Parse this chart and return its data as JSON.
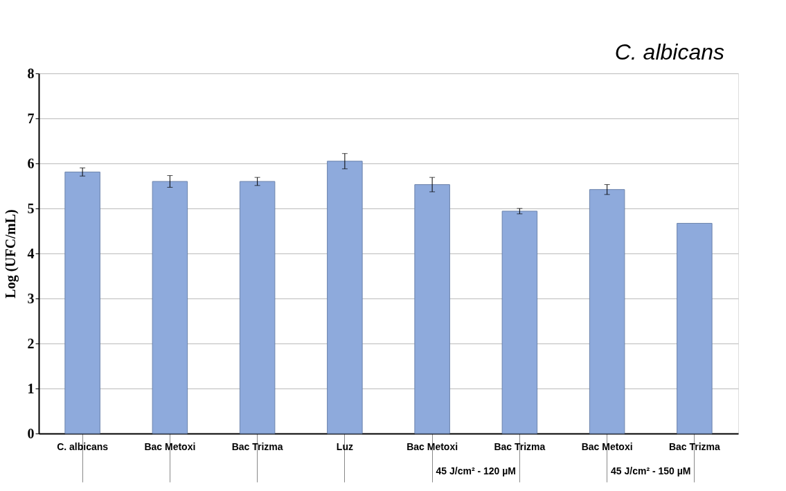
{
  "chart_data": {
    "type": "bar",
    "title": "C. albicans",
    "ylabel": "Log (UFC/mL)",
    "categories": [
      "C. albicans",
      "Bac Metoxi",
      "Bac Trizma",
      "Luz",
      "Bac Metoxi",
      "Bac Trizma",
      "Bac Metoxi",
      "Bac Trizma"
    ],
    "series": [
      {
        "color": "#8eaadc",
        "values": [
          5.81,
          5.6,
          5.6,
          6.05,
          5.53,
          4.94,
          5.42,
          4.67
        ],
        "errors": [
          0.09,
          0.13,
          0.09,
          0.17,
          0.16,
          0.06,
          0.11,
          null
        ]
      }
    ],
    "ylim": [
      0,
      8
    ],
    "yticks": [
      0,
      1,
      2,
      3,
      4,
      5,
      6,
      7,
      8
    ],
    "grid": "y",
    "annotations": [
      "45 J/cm² - 120 µM",
      "45 J/cm² - 150 µM"
    ]
  }
}
